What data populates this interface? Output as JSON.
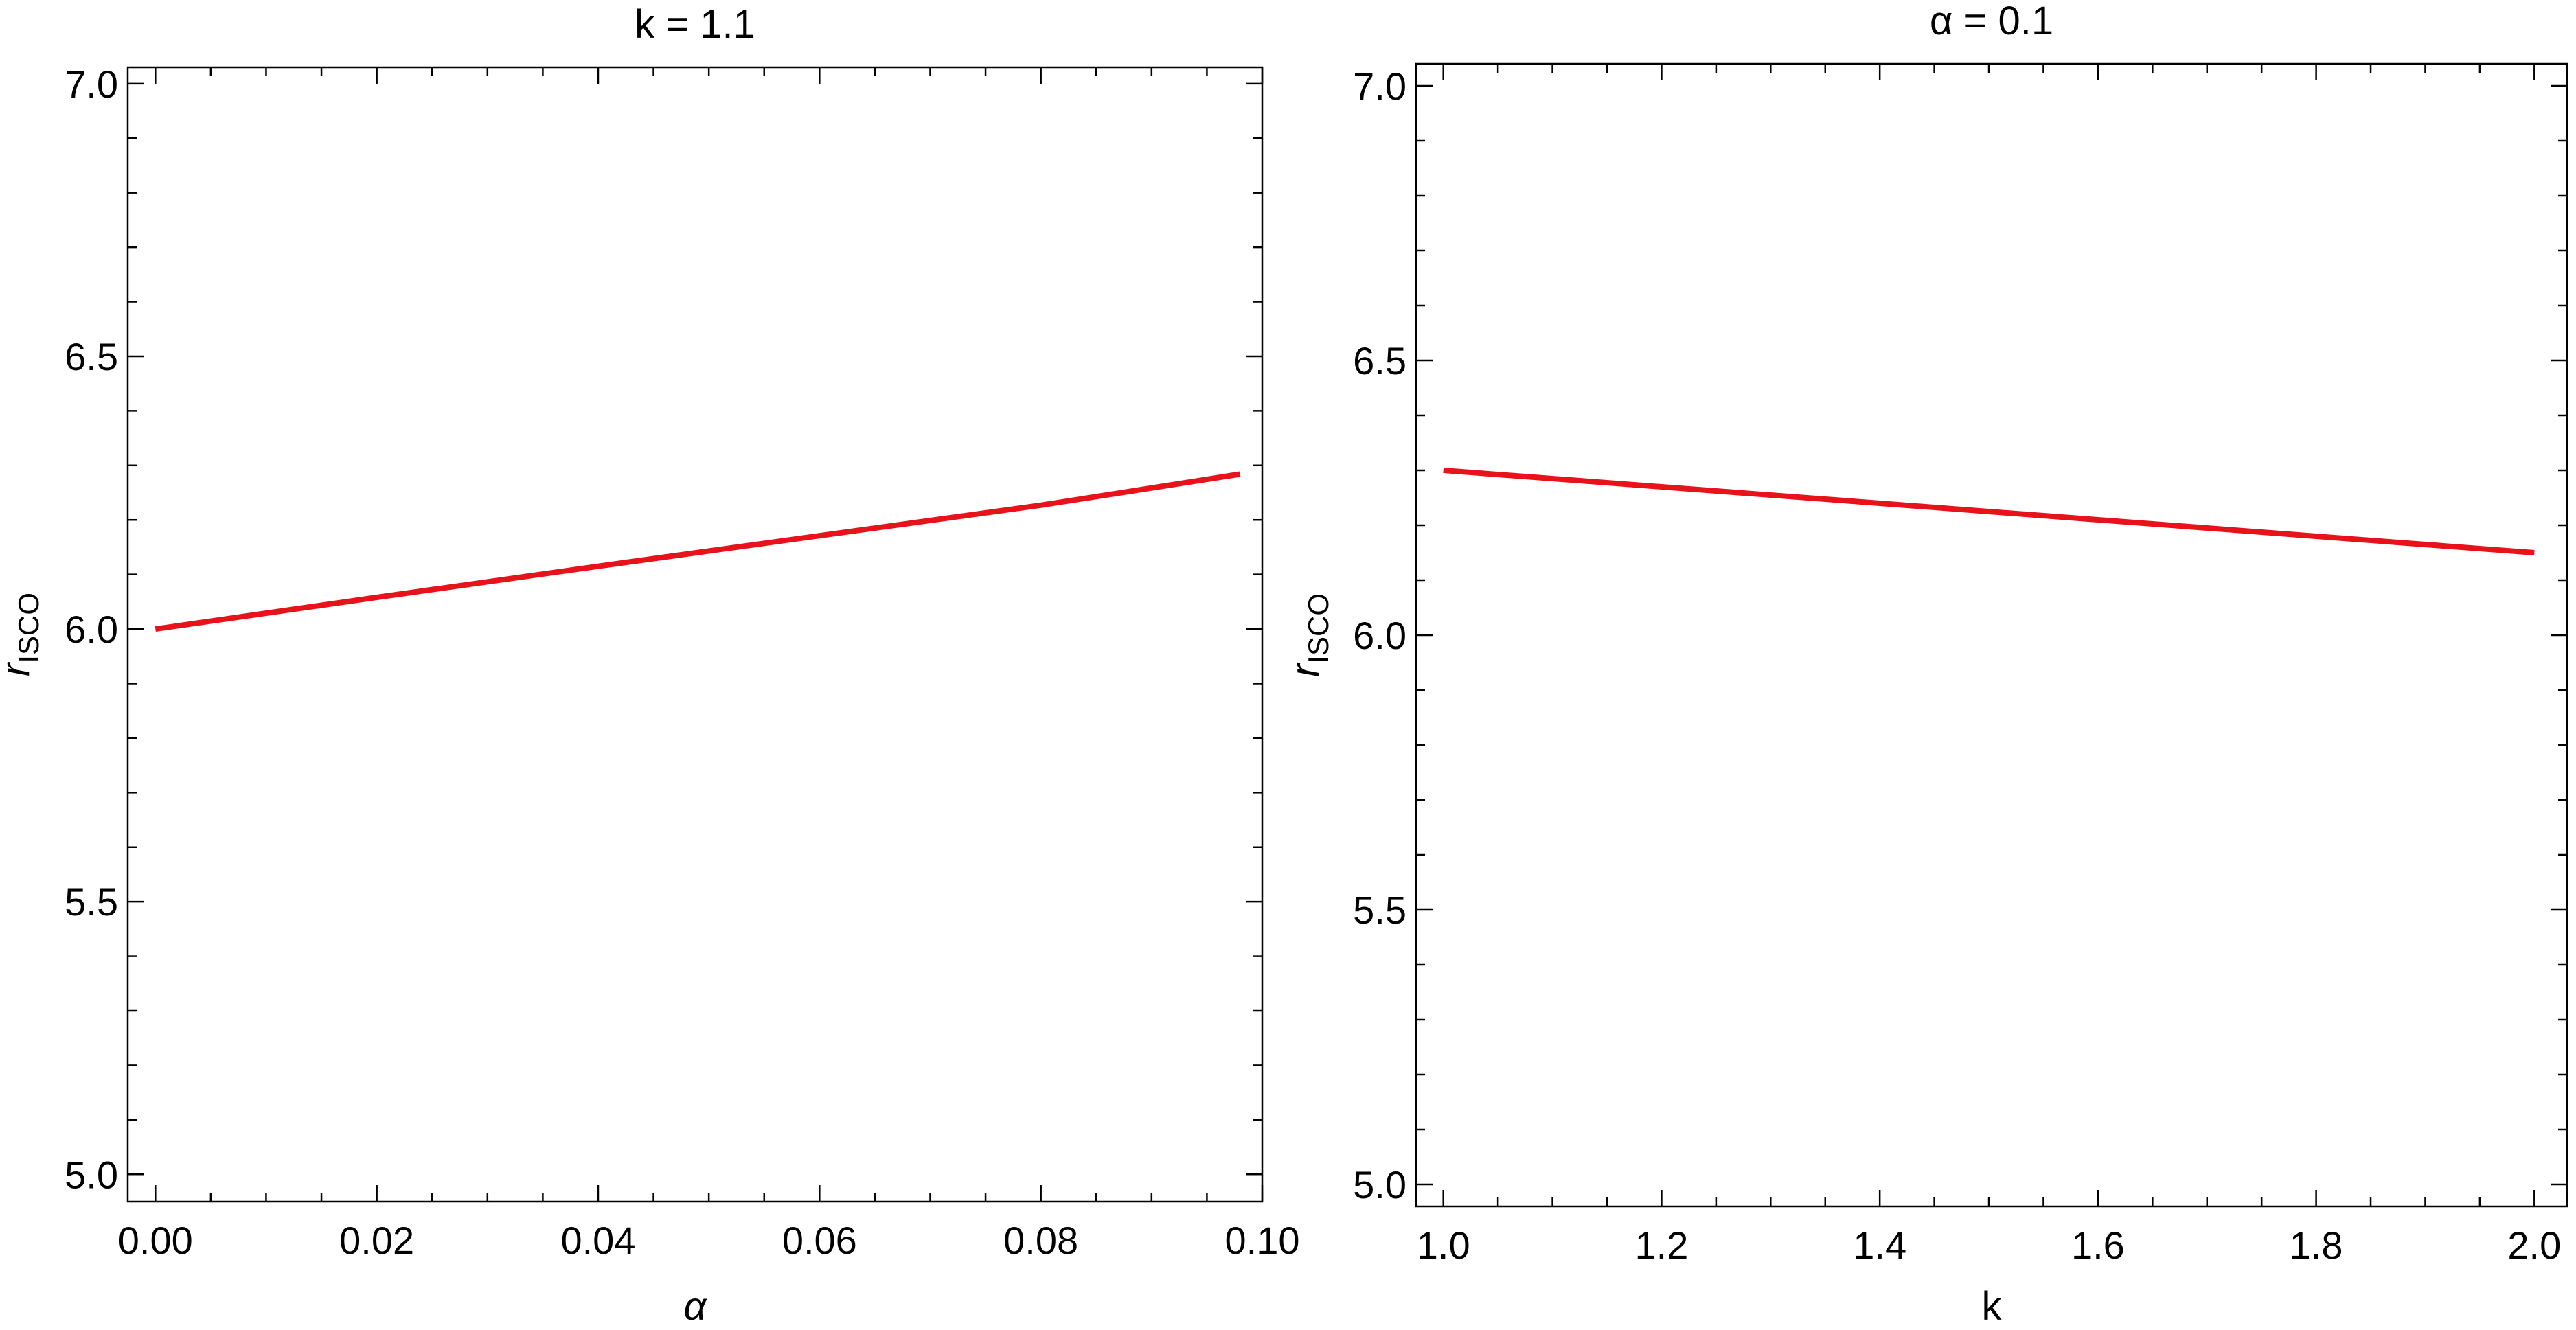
{
  "chart_data": [
    {
      "type": "line",
      "title": "k = 1.1",
      "xlabel": "α",
      "ylabel": "r",
      "ylabel_subscript": "ISCO",
      "xlim": [
        -0.0025,
        0.1
      ],
      "ylim": [
        4.95,
        7.03
      ],
      "xticks": [
        0.0,
        0.02,
        0.04,
        0.06,
        0.08,
        0.1
      ],
      "xtick_labels": [
        "0.00",
        "0.02",
        "0.04",
        "0.06",
        "0.08",
        "0.10"
      ],
      "yticks": [
        5.0,
        5.5,
        6.0,
        6.5,
        7.0
      ],
      "ytick_labels": [
        "5.0",
        "5.5",
        "6.0",
        "6.5",
        "7.0"
      ],
      "grid": false,
      "series": [
        {
          "color": "#e8121b",
          "x": [
            0.0,
            0.02,
            0.04,
            0.06,
            0.08,
            0.098
          ],
          "y": [
            6.0,
            6.058,
            6.115,
            6.171,
            6.227,
            6.284
          ]
        }
      ]
    },
    {
      "type": "line",
      "title": "α = 0.1",
      "xlabel": "k",
      "ylabel": "r",
      "ylabel_subscript": "ISCO",
      "xlim": [
        0.975,
        2.03
      ],
      "ylim": [
        4.96,
        7.04
      ],
      "xticks": [
        1.0,
        1.2,
        1.4,
        1.6,
        1.8,
        2.0
      ],
      "xtick_labels": [
        "1.0",
        "1.2",
        "1.4",
        "1.6",
        "1.8",
        "2.0"
      ],
      "yticks": [
        5.0,
        5.5,
        6.0,
        6.5,
        7.0
      ],
      "ytick_labels": [
        "5.0",
        "5.5",
        "6.0",
        "6.5",
        "7.0"
      ],
      "grid": false,
      "series": [
        {
          "color": "#e8121b",
          "x": [
            1.0,
            1.2,
            1.4,
            1.6,
            1.8,
            2.0
          ],
          "y": [
            6.3,
            6.27,
            6.24,
            6.21,
            6.18,
            6.15
          ]
        }
      ]
    }
  ]
}
